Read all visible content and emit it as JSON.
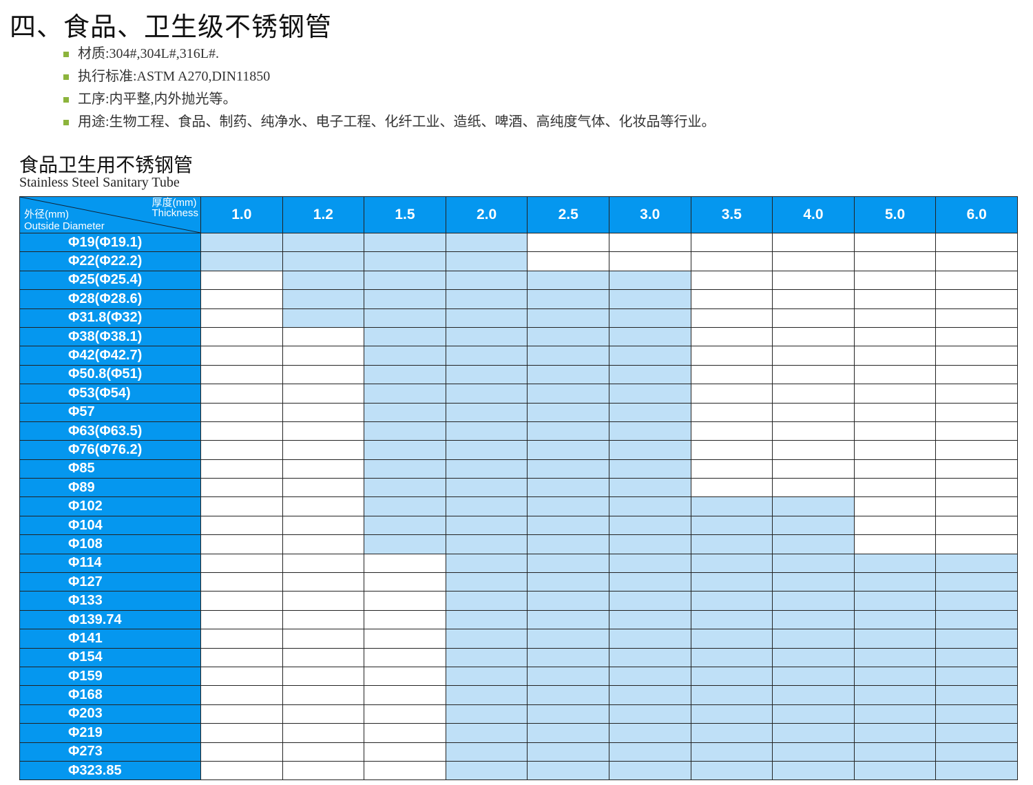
{
  "title": "四、食品、卫生级不锈钢管",
  "bullets": [
    "材质:304#,304L#,316L#.",
    "执行标准:ASTM  A270,DIN11850",
    "工序:内平整,内外抛光等。",
    "用途:生物工程、食品、制药、纯净水、电子工程、化纤工业、造纸、啤酒、高纯度气体、化妆品等行业。"
  ],
  "colors": {
    "header": "#0597ef",
    "available": "#bfe0f7",
    "bullet": "#8cb43c"
  },
  "table": {
    "title_cn": "食品卫生用不锈钢管",
    "title_en": "Stainless Steel Sanitary Tube",
    "corner": {
      "thickness_cn": "厚度(mm)",
      "thickness_en": "Thickness",
      "od_cn": "外径(mm)",
      "od_en": "Outside Diameter"
    },
    "thickness": [
      "1.0",
      "1.2",
      "1.5",
      "2.0",
      "2.5",
      "3.0",
      "3.5",
      "4.0",
      "5.0",
      "6.0"
    ],
    "rows": [
      {
        "od": "Φ19(Φ19.1)",
        "available": [
          "1.0",
          "2.0"
        ]
      },
      {
        "od": "Φ22(Φ22.2)",
        "available": [
          "1.0",
          "2.0"
        ]
      },
      {
        "od": "Φ25(Φ25.4)",
        "available": [
          "1.2",
          "3.0"
        ]
      },
      {
        "od": "Φ28(Φ28.6)",
        "available": [
          "1.2",
          "3.0"
        ]
      },
      {
        "od": "Φ31.8(Φ32)",
        "available": [
          "1.2",
          "3.0"
        ]
      },
      {
        "od": "Φ38(Φ38.1)",
        "available": [
          "1.5",
          "3.0"
        ]
      },
      {
        "od": "Φ42(Φ42.7)",
        "available": [
          "1.5",
          "3.0"
        ]
      },
      {
        "od": "Φ50.8(Φ51)",
        "available": [
          "1.5",
          "3.0"
        ]
      },
      {
        "od": "Φ53(Φ54)",
        "available": [
          "1.5",
          "3.0"
        ]
      },
      {
        "od": "Φ57",
        "available": [
          "1.5",
          "3.0"
        ]
      },
      {
        "od": "Φ63(Φ63.5)",
        "available": [
          "1.5",
          "3.0"
        ]
      },
      {
        "od": "Φ76(Φ76.2)",
        "available": [
          "1.5",
          "3.0"
        ]
      },
      {
        "od": "Φ85",
        "available": [
          "1.5",
          "3.0"
        ]
      },
      {
        "od": "Φ89",
        "available": [
          "1.5",
          "3.0"
        ]
      },
      {
        "od": "Φ102",
        "available": [
          "1.5",
          "4.0"
        ]
      },
      {
        "od": "Φ104",
        "available": [
          "1.5",
          "4.0"
        ]
      },
      {
        "od": "Φ108",
        "available": [
          "1.5",
          "4.0"
        ]
      },
      {
        "od": "Φ114",
        "available": [
          "2.0",
          "6.0"
        ]
      },
      {
        "od": "Φ127",
        "available": [
          "2.0",
          "6.0"
        ]
      },
      {
        "od": "Φ133",
        "available": [
          "2.0",
          "6.0"
        ]
      },
      {
        "od": "Φ139.74",
        "available": [
          "2.0",
          "6.0"
        ]
      },
      {
        "od": "Φ141",
        "available": [
          "2.0",
          "6.0"
        ]
      },
      {
        "od": "Φ154",
        "available": [
          "2.0",
          "6.0"
        ]
      },
      {
        "od": "Φ159",
        "available": [
          "2.0",
          "6.0"
        ]
      },
      {
        "od": "Φ168",
        "available": [
          "2.0",
          "6.0"
        ]
      },
      {
        "od": "Φ203",
        "available": [
          "2.0",
          "6.0"
        ]
      },
      {
        "od": "Φ219",
        "available": [
          "2.0",
          "6.0"
        ]
      },
      {
        "od": "Φ273",
        "available": [
          "2.0",
          "6.0"
        ]
      },
      {
        "od": "Φ323.85",
        "available": [
          "2.0",
          "6.0"
        ]
      }
    ]
  }
}
